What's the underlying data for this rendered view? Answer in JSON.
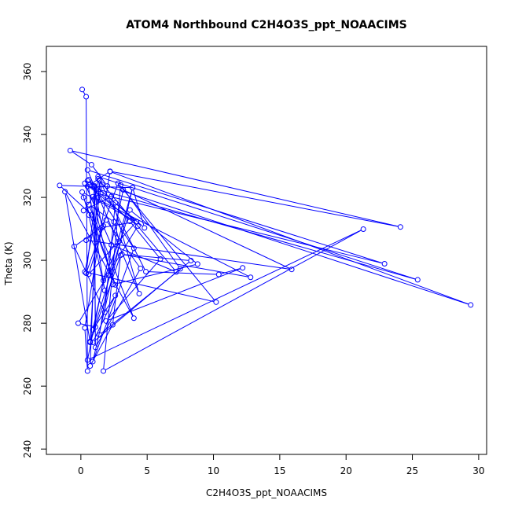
{
  "chart_data": {
    "type": "scatter",
    "title": "ATOM4 Northbound C2H4O3S_ppt_NOAACIMS",
    "xlabel": "C2H4O3S_ppt_NOAACIMS",
    "ylabel": "Theta (K)",
    "xlim": [
      -2.6,
      30.6
    ],
    "ylim": [
      238.3,
      368.0
    ],
    "x_ticks": [
      0,
      5,
      10,
      15,
      20,
      25,
      30
    ],
    "y_ticks": [
      240,
      260,
      280,
      300,
      320,
      340,
      360
    ],
    "series": [
      {
        "color": "#0000ff",
        "marker": "open-circle",
        "connected": true,
        "x": [
          0.1,
          0.4,
          0.5,
          0.3,
          2.2,
          29.4,
          2.0,
          0.8,
          -0.8,
          24.1,
          2.2,
          0.5,
          25.4,
          1.3,
          0.4,
          2.8,
          10.2,
          0.3,
          1.6,
          0.2,
          2.3,
          4.4,
          0.5,
          22.9,
          1.2,
          0.7,
          2.4,
          3.0,
          0.7,
          -1.2,
          4.0,
          0.6,
          2.5,
          2.9,
          1.7,
          0.5,
          21.3,
          1.7,
          3.0,
          7.5,
          0.9,
          2.6,
          0.9,
          3.2,
          15.9,
          0.4,
          1.9,
          4.5,
          1.1,
          1.0,
          1.6,
          4.2,
          0.6,
          1.7,
          -0.5,
          1.8,
          2.6,
          4.8,
          3.9,
          2.1,
          1.4,
          8.3,
          3.1,
          12.8,
          0.9,
          2.4,
          8.8,
          3.7,
          0.7,
          1.4,
          4.9,
          10.4,
          12.2,
          1.9,
          6.0,
          3.7,
          1.5,
          1.3,
          7.2,
          2.3,
          0.3,
          4.3,
          -0.2,
          1.1,
          1.0,
          0.5,
          1.8,
          0.6,
          0.1,
          4.2,
          0.6,
          4.0,
          0.9,
          3.9,
          -1.6,
          0.8,
          2.6,
          0.2
        ],
        "y": [
          354.3,
          352.0,
          264.8,
          278.5,
          328.2,
          285.8,
          323.6,
          330.4,
          334.9,
          310.6,
          328.3,
          323.5,
          293.8,
          326.6,
          295.9,
          324.5,
          286.7,
          296.3,
          324.1,
          315.8,
          320.3,
          289.4,
          328.7,
          298.9,
          321.3,
          266.4,
          279.5,
          301.6,
          273.9,
          321.8,
          281.6,
          317.7,
          312.2,
          306.1,
          293.6,
          268.3,
          309.9,
          264.8,
          324.0,
          297.3,
          273.9,
          288.8,
          277.9,
          322.4,
          297.1,
          306.4,
          312.8,
          297.4,
          272.3,
          323.7,
          310.4,
          312.3,
          295.6,
          310.9,
          304.4,
          283.5,
          318.3,
          310.3,
          323.1,
          295.3,
          276.3,
          299.9,
          301.9,
          294.6,
          320.2,
          292.3,
          298.8,
          316.0,
          274.2,
          325.5,
          296.4,
          295.5,
          297.6,
          280.7,
          300.4,
          312.4,
          321.2,
          325.9,
          296.3,
          304.9,
          324.5,
          310.9,
          280.0,
          278.8,
          323.4,
          325.3,
          290.4,
          314.4,
          321.7,
          312.2,
          325.6,
          303.8,
          267.8,
          323.1,
          323.8,
          314.5,
          292.2,
          320.0
        ]
      }
    ]
  }
}
